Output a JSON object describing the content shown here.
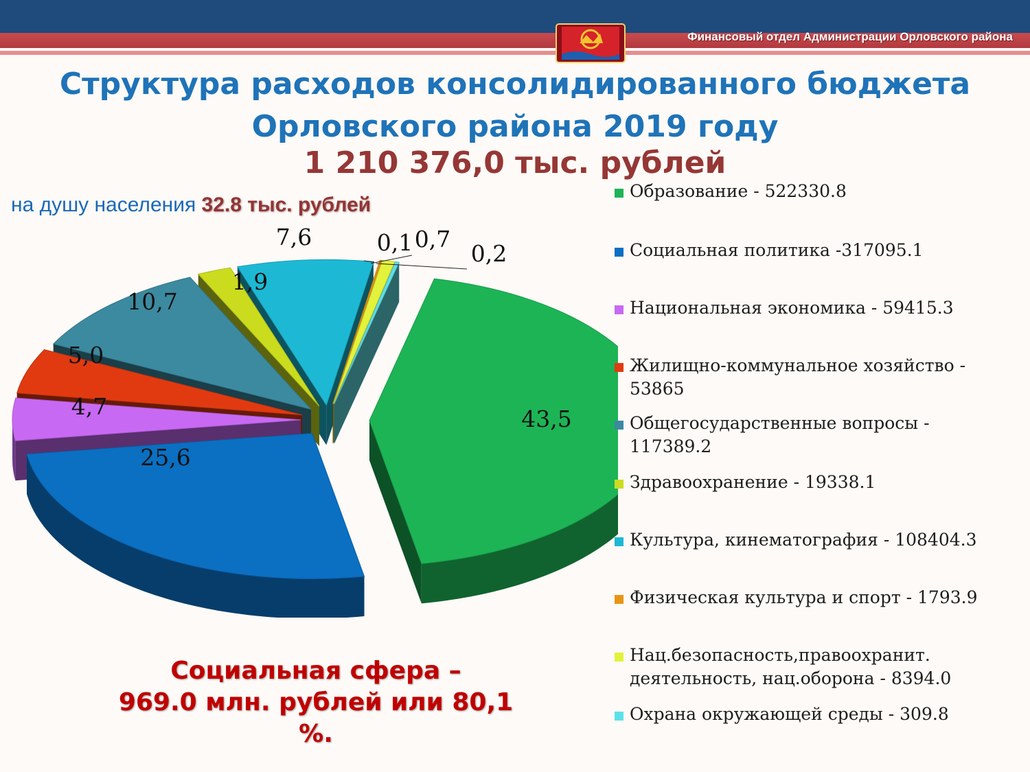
{
  "header": {
    "org": "Финансовый отдел Администрации Орловского района"
  },
  "title": {
    "line1": "Структура расходов консолидированного бюджета",
    "line2": "Орловского района 2019 году",
    "total": "1 210 376,0 тыс. рублей"
  },
  "per_capita": {
    "label": "на душу населения ",
    "value": "32.8 тыс. рублей"
  },
  "social": {
    "line1": "Социальная  сфера  –",
    "line2": "969.0 млн. рублей или 80,1 %."
  },
  "chart_data": {
    "type": "pie",
    "three_d": true,
    "exploded": true,
    "legend": "right",
    "slices": [
      {
        "label": "Образование - 522330.8",
        "value": 43.5,
        "value_label": "43,5",
        "color": "#1db456"
      },
      {
        "label": "Социальная политика -317095.1",
        "value": 25.6,
        "value_label": "25,6",
        "color": "#0b6fc2"
      },
      {
        "label": "Национальная экономика - 59415.3",
        "value": 4.7,
        "value_label": "4,7",
        "color": "#c869f3"
      },
      {
        "label": "Жилищно-коммунальное хозяйство - 53865",
        "value": 5.0,
        "value_label": "5,0",
        "color": "#e13a10"
      },
      {
        "label": "Общегосударственные вопросы   - 117389.2",
        "value": 10.7,
        "value_label": "10,7",
        "color": "#3c8aa0"
      },
      {
        "label": "Здравоохранение - 19338.1",
        "value": 1.9,
        "value_label": "1,9",
        "color": "#cbdc1e"
      },
      {
        "label": "Культура, кинематография - 108404.3",
        "value": 7.6,
        "value_label": "7,6",
        "color": "#1db9d4"
      },
      {
        "label": "Физическая культура и спорт - 1793.9",
        "value": 0.1,
        "value_label": "0,1",
        "color": "#e89515"
      },
      {
        "label": "Нац.безопасность,правоохранит. деятельность, нац.оборона - 8394.0",
        "value": 0.7,
        "value_label": "0,7",
        "color": "#e3f23b"
      },
      {
        "label": "Охрана окружающей среды - 309.8",
        "value": 0.2,
        "value_label": "0,2",
        "color": "#5fe0e8"
      }
    ]
  }
}
